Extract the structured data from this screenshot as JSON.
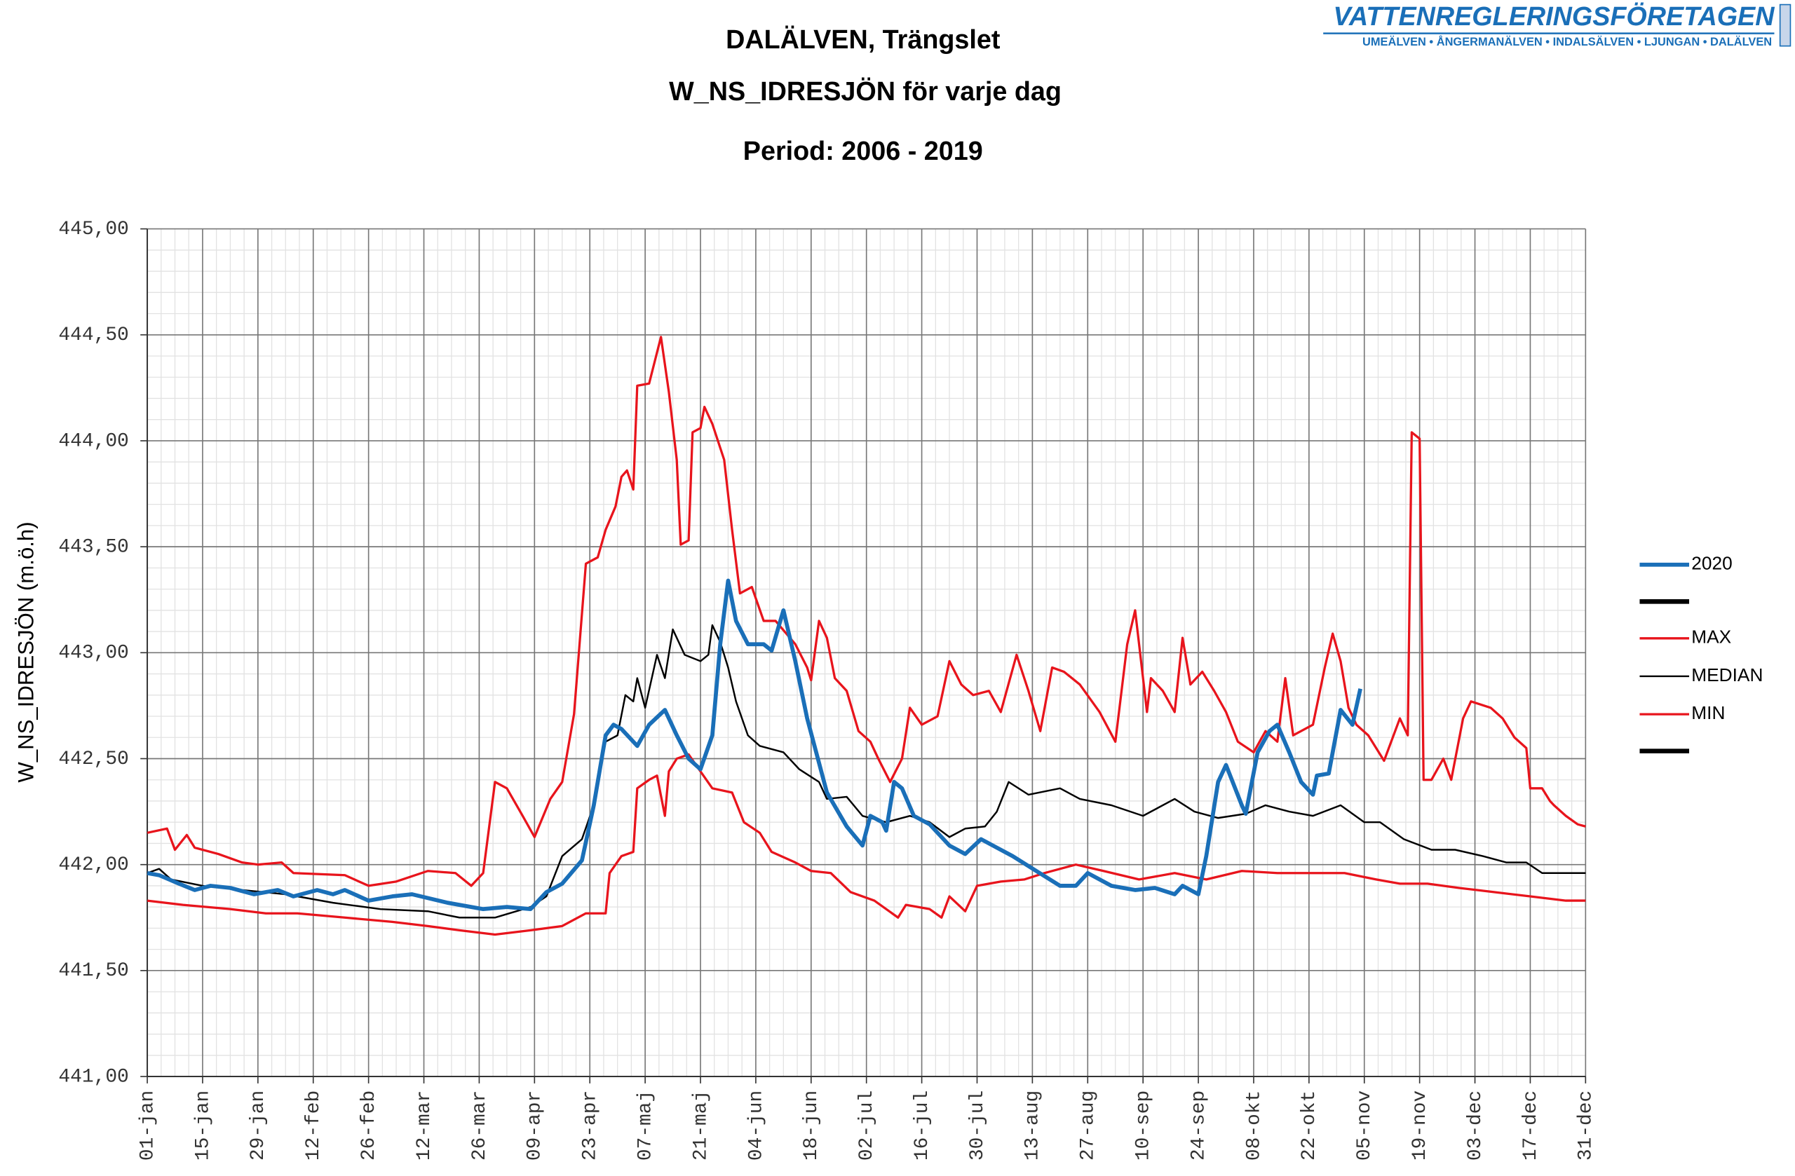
{
  "logo": {
    "name": "VATTENREGLERINGSFÖRETAGEN",
    "rivers": "UMEÄLVEN • ÅNGERMANÄLVEN • INDALSÄLVEN • LJUNGAN • DALÄLVEN"
  },
  "chart_data": {
    "type": "line",
    "title": "DALÄLVEN, Trängslet",
    "subtitle": "W_NS_IDRESJÖN för varje dag",
    "note": "Period: 2006 - 2019",
    "y_label": "W_NS_IDRESJÖN (m.ö.h)",
    "xlim": [
      0,
      364
    ],
    "xticks": [
      {
        "value": 0,
        "label": "01-jan"
      },
      {
        "value": 14,
        "label": "15-jan"
      },
      {
        "value": 28,
        "label": "29-jan"
      },
      {
        "value": 42,
        "label": "12-feb"
      },
      {
        "value": 56,
        "label": "26-feb"
      },
      {
        "value": 70,
        "label": "12-mar"
      },
      {
        "value": 84,
        "label": "26-mar"
      },
      {
        "value": 98,
        "label": "09-apr"
      },
      {
        "value": 112,
        "label": "23-apr"
      },
      {
        "value": 126,
        "label": "07-maj"
      },
      {
        "value": 140,
        "label": "21-maj"
      },
      {
        "value": 154,
        "label": "04-jun"
      },
      {
        "value": 168,
        "label": "18-jun"
      },
      {
        "value": 182,
        "label": "02-jul"
      },
      {
        "value": 196,
        "label": "16-jul"
      },
      {
        "value": 210,
        "label": "30-jul"
      },
      {
        "value": 224,
        "label": "13-aug"
      },
      {
        "value": 238,
        "label": "27-aug"
      },
      {
        "value": 252,
        "label": "10-sep"
      },
      {
        "value": 266,
        "label": "24-sep"
      },
      {
        "value": 280,
        "label": "08-okt"
      },
      {
        "value": 294,
        "label": "22-okt"
      },
      {
        "value": 308,
        "label": "05-nov"
      },
      {
        "value": 322,
        "label": "19-nov"
      },
      {
        "value": 336,
        "label": "03-dec"
      },
      {
        "value": 350,
        "label": "17-dec"
      },
      {
        "value": 364,
        "label": "31-dec"
      }
    ],
    "ylim": [
      441,
      445
    ],
    "yticks": [
      {
        "value": 441,
        "label": "441,00"
      },
      {
        "value": 441.5,
        "label": "441,50"
      },
      {
        "value": 442,
        "label": "442,00"
      },
      {
        "value": 442.5,
        "label": "442,50"
      },
      {
        "value": 443,
        "label": "443,00"
      },
      {
        "value": 443.5,
        "label": "443,50"
      },
      {
        "value": 444,
        "label": "444,00"
      },
      {
        "value": 444.5,
        "label": "444,50"
      },
      {
        "value": 445,
        "label": "445,00"
      }
    ],
    "grid": true,
    "legend": "right",
    "series": [
      {
        "name": "2020",
        "color": "#1a6fb8",
        "width": 3.5,
        "x": [
          0,
          3,
          8,
          12,
          16,
          21,
          27,
          33,
          37,
          43,
          47,
          50,
          56,
          62,
          67,
          76,
          85,
          91,
          97,
          101,
          105,
          110,
          113,
          116,
          118,
          120,
          124,
          127,
          131,
          134,
          137,
          140,
          143,
          145,
          147,
          149,
          152,
          156,
          158,
          161,
          164,
          167,
          169,
          172,
          177,
          181,
          183,
          186,
          187,
          189,
          191,
          194,
          198,
          203,
          207,
          211,
          215,
          219,
          225,
          231,
          235,
          238,
          244,
          250,
          255,
          260,
          262,
          266,
          268,
          271,
          273,
          277,
          278,
          281,
          284,
          286,
          289,
          292,
          295,
          296,
          299,
          302,
          305,
          307
        ],
        "values": [
          441.96,
          441.95,
          441.91,
          441.88,
          441.9,
          441.89,
          441.86,
          441.88,
          441.85,
          441.88,
          441.86,
          441.88,
          441.83,
          441.85,
          441.86,
          441.82,
          441.79,
          441.8,
          441.79,
          441.87,
          441.91,
          442.02,
          442.28,
          442.61,
          442.66,
          442.64,
          442.56,
          442.66,
          442.73,
          442.61,
          442.5,
          442.45,
          442.61,
          443.04,
          443.34,
          443.15,
          443.04,
          443.04,
          443.01,
          443.2,
          442.96,
          442.69,
          442.55,
          442.34,
          442.18,
          442.09,
          442.23,
          442.2,
          442.16,
          442.39,
          442.36,
          442.23,
          442.19,
          442.09,
          442.05,
          442.12,
          442.08,
          442.04,
          441.97,
          441.9,
          441.9,
          441.96,
          441.9,
          441.88,
          441.89,
          441.86,
          441.9,
          441.86,
          442.04,
          442.39,
          442.47,
          442.28,
          442.24,
          442.53,
          442.63,
          442.66,
          442.53,
          442.39,
          442.33,
          442.42,
          442.43,
          442.73,
          442.66,
          442.83
        ]
      },
      {
        "name": "MAX",
        "color": "#e8141c",
        "width": 2,
        "x": [
          0,
          5,
          7,
          10,
          12,
          18,
          24,
          28,
          34,
          37,
          50,
          56,
          63,
          71,
          78,
          82,
          85,
          88,
          91,
          95,
          98,
          102,
          105,
          108,
          111,
          114,
          116,
          118.5,
          120,
          121.4,
          123,
          124,
          127,
          130,
          132,
          134,
          135,
          137,
          138,
          140,
          141,
          143,
          146,
          148,
          150,
          153,
          156,
          159,
          164,
          167,
          168,
          170,
          172,
          174,
          177,
          180,
          183,
          185,
          188,
          191,
          193,
          196,
          200,
          203,
          206,
          209,
          213,
          216,
          220,
          223,
          226,
          229,
          232,
          236,
          241,
          245,
          248,
          250,
          253,
          254,
          257,
          260,
          262,
          264,
          267,
          270,
          273,
          276,
          280,
          283,
          286,
          288,
          290,
          295,
          298,
          300,
          302,
          304,
          306,
          309,
          313,
          317,
          319,
          320,
          322,
          323,
          325,
          328,
          330,
          333,
          335,
          340,
          343,
          346,
          349,
          350,
          353,
          355,
          356,
          359,
          362,
          364
        ],
        "values": [
          442.15,
          442.17,
          442.07,
          442.14,
          442.08,
          442.05,
          442.01,
          442.0,
          442.01,
          441.96,
          441.95,
          441.9,
          441.92,
          441.97,
          441.96,
          441.9,
          441.96,
          442.39,
          442.36,
          442.23,
          442.13,
          442.31,
          442.39,
          442.71,
          443.42,
          443.45,
          443.58,
          443.69,
          443.83,
          443.86,
          443.77,
          444.26,
          444.27,
          444.49,
          444.23,
          443.91,
          443.51,
          443.53,
          444.04,
          444.06,
          444.16,
          444.08,
          443.91,
          443.58,
          443.28,
          443.31,
          443.15,
          443.15,
          443.04,
          442.93,
          442.87,
          443.15,
          443.07,
          442.88,
          442.82,
          442.63,
          442.58,
          442.5,
          442.39,
          442.5,
          442.74,
          442.66,
          442.7,
          442.96,
          442.85,
          442.8,
          442.82,
          442.72,
          442.99,
          442.82,
          442.63,
          442.93,
          442.91,
          442.85,
          442.72,
          442.58,
          443.04,
          443.2,
          442.72,
          442.88,
          442.82,
          442.72,
          443.07,
          442.85,
          442.91,
          442.82,
          442.72,
          442.58,
          442.53,
          442.63,
          442.58,
          442.88,
          442.61,
          442.66,
          442.93,
          443.09,
          442.96,
          442.74,
          442.66,
          442.61,
          442.49,
          442.69,
          442.61,
          444.04,
          444.01,
          442.4,
          442.4,
          442.5,
          442.4,
          442.69,
          442.77,
          442.74,
          442.69,
          442.6,
          442.55,
          442.36,
          442.36,
          442.3,
          442.28,
          442.23,
          442.19,
          442.18
        ]
      },
      {
        "name": "MEDIAN",
        "color": "#000000",
        "width": 1.5,
        "x": [
          0,
          3,
          6,
          14,
          24,
          35,
          47,
          59,
          71,
          79,
          88,
          97,
          101,
          105,
          110,
          113,
          116,
          119,
          121,
          123,
          124,
          126,
          129,
          131,
          133,
          136,
          140,
          142,
          143,
          145,
          147,
          149,
          152,
          155,
          161,
          165,
          170,
          172,
          177,
          181,
          187,
          193,
          198,
          203,
          207,
          212,
          215,
          218,
          223,
          231,
          236,
          244,
          252,
          260,
          265,
          271,
          278,
          283,
          289,
          295,
          302,
          308,
          312,
          318,
          325,
          331,
          338,
          344,
          349,
          353,
          364
        ],
        "values": [
          441.96,
          441.98,
          441.93,
          441.9,
          441.88,
          441.86,
          441.82,
          441.79,
          441.78,
          441.75,
          441.75,
          441.8,
          441.85,
          442.04,
          442.12,
          442.28,
          442.58,
          442.61,
          442.8,
          442.77,
          442.88,
          442.74,
          442.99,
          442.88,
          443.11,
          442.99,
          442.96,
          442.99,
          443.13,
          443.05,
          442.93,
          442.77,
          442.61,
          442.56,
          442.53,
          442.45,
          442.39,
          442.31,
          442.32,
          442.23,
          442.2,
          442.23,
          442.2,
          442.13,
          442.17,
          442.18,
          442.25,
          442.39,
          442.33,
          442.36,
          442.31,
          442.28,
          442.23,
          442.31,
          442.25,
          442.22,
          442.24,
          442.28,
          442.25,
          442.23,
          442.28,
          442.2,
          442.2,
          442.12,
          442.07,
          442.07,
          442.04,
          442.01,
          442.01,
          441.96,
          441.96
        ]
      },
      {
        "name": "MIN",
        "color": "#e8141c",
        "width": 2,
        "x": [
          0,
          9,
          21,
          30,
          38,
          50,
          62,
          71,
          79,
          88,
          97,
          105,
          111,
          116,
          117,
          120,
          123,
          124,
          127,
          129,
          131,
          132,
          134,
          137,
          140,
          143,
          148,
          151,
          155,
          158,
          164,
          168,
          173,
          178,
          184,
          190,
          192,
          198,
          201,
          203,
          207,
          210,
          216,
          222,
          227,
          235,
          242,
          251,
          260,
          268,
          277,
          286,
          295,
          303,
          311,
          317,
          324,
          332,
          341,
          350,
          359,
          364
        ],
        "values": [
          441.83,
          441.81,
          441.79,
          441.77,
          441.77,
          441.75,
          441.73,
          441.71,
          441.69,
          441.67,
          441.69,
          441.71,
          441.77,
          441.77,
          441.96,
          442.04,
          442.06,
          442.36,
          442.4,
          442.42,
          442.23,
          442.44,
          442.5,
          442.52,
          442.44,
          442.36,
          442.34,
          442.2,
          442.15,
          442.06,
          442.01,
          441.97,
          441.96,
          441.87,
          441.83,
          441.75,
          441.81,
          441.79,
          441.75,
          441.85,
          441.78,
          441.9,
          441.92,
          441.93,
          441.96,
          442.0,
          441.97,
          441.93,
          441.96,
          441.93,
          441.97,
          441.96,
          441.96,
          441.96,
          441.93,
          441.91,
          441.91,
          441.89,
          441.87,
          441.85,
          441.83,
          441.83
        ]
      }
    ]
  }
}
